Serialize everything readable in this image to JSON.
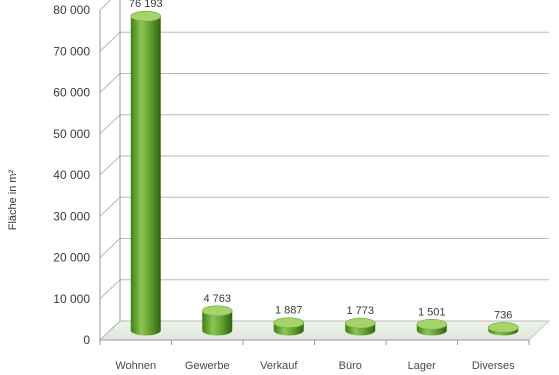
{
  "chart_data": {
    "type": "bar",
    "categories": [
      "Wohnen",
      "Gewerbe",
      "Verkauf",
      "Büro",
      "Lager",
      "Diverses"
    ],
    "values": [
      76193,
      4763,
      1887,
      1773,
      1501,
      736
    ],
    "value_labels": [
      "76 193",
      "4 763",
      "1 887",
      "1 773",
      "1 501",
      "736"
    ],
    "ylabel": "Fläche in m²",
    "xlabel": "",
    "title": "",
    "ylim": [
      0,
      80000
    ],
    "yticks": [
      0,
      10000,
      20000,
      30000,
      40000,
      50000,
      60000,
      70000,
      80000
    ],
    "ytick_labels": [
      "0",
      "10 000",
      "20 000",
      "30 000",
      "40 000",
      "50 000",
      "60 000",
      "70 000",
      "80 000"
    ],
    "grid": true,
    "style": "3d-cylinder",
    "colors": {
      "bar": "#5a9e2c",
      "bar_light": "#a6d46a",
      "bar_dark": "#2f6d12",
      "grid": "#b8b8b8"
    }
  }
}
